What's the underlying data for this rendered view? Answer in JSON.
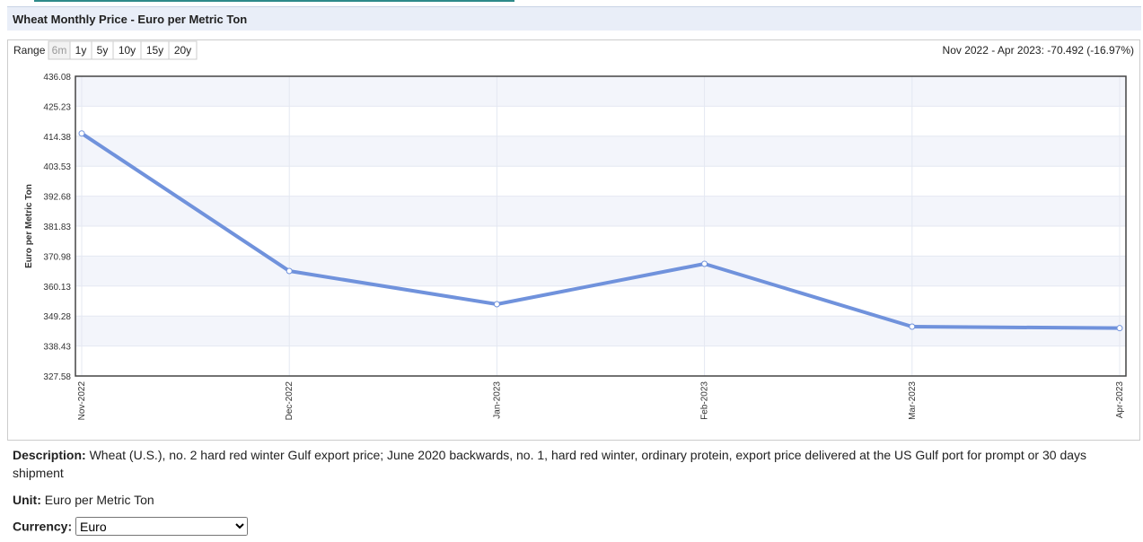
{
  "chart_data": {
    "type": "line",
    "title": "Wheat Monthly Price - Euro per Metric Ton",
    "range_label": "Range",
    "ranges": [
      "6m",
      "1y",
      "5y",
      "10y",
      "15y",
      "20y"
    ],
    "summary": "Nov 2022 - Apr 2023: -70.492 (-16.97%)",
    "y_label": "Euro per Metric Ton",
    "categories": [
      "Nov-2022",
      "Dec-2022",
      "Jan-2023",
      "Feb-2023",
      "Mar-2023",
      "Apr-2023"
    ],
    "values": [
      415.39,
      365.58,
      353.56,
      368.18,
      345.44,
      344.9
    ],
    "color": "#7092dc",
    "ylim": [
      327.58,
      436.08
    ],
    "yticks": [
      327.58,
      338.43,
      349.28,
      360.13,
      370.98,
      381.83,
      392.68,
      403.53,
      414.38,
      425.23,
      436.08
    ],
    "grid": true
  },
  "description": {
    "label": "Description:",
    "text": "Wheat (U.S.), no. 2 hard red winter Gulf export price; June 2020 backwards, no. 1, hard red winter, ordinary protein, export price delivered at the US Gulf port for prompt or 30 days shipment"
  },
  "unit": {
    "label": "Unit:",
    "text": "Euro per Metric Ton"
  },
  "currency": {
    "label": "Currency:",
    "selected": "Euro"
  }
}
